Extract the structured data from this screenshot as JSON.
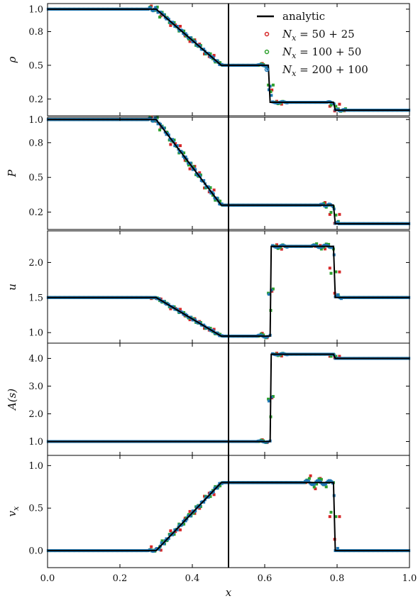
{
  "chart_data": {
    "type": "line",
    "shared_x": {
      "xlabel": "x",
      "xlim": [
        0.0,
        1.0
      ],
      "xticks": [
        0.0,
        0.2,
        0.4,
        0.6,
        0.8,
        1.0
      ],
      "xtick_labels": [
        "0.0",
        "0.2",
        "0.4",
        "0.6",
        "0.8",
        "1.0"
      ]
    },
    "vertical_line_x": 0.5,
    "legend": {
      "placement": "top-right",
      "entries": [
        {
          "label": "analytic",
          "style": "line",
          "color": "#000000"
        },
        {
          "label": "N_x = 50 + 25",
          "sub": "x",
          "rhs": " = 50 + 25",
          "style": "marker",
          "color": "#d62728"
        },
        {
          "label": "N_x = 100 + 50",
          "sub": "x",
          "rhs": " = 100 + 50",
          "style": "marker",
          "color": "#2ca02c"
        },
        {
          "label": "N_x = 200 + 100",
          "sub": "x",
          "rhs": " = 200 + 100",
          "style": "marker",
          "color": "#1f77b4"
        }
      ]
    },
    "panels": [
      {
        "ylabel": "ρ",
        "ylim": [
          0.05,
          1.05
        ],
        "yticks": [
          0.2,
          0.5,
          0.8,
          1.0
        ],
        "ytick_labels": [
          "0.2",
          "0.5",
          "0.8",
          "1.0"
        ],
        "analytic": [
          [
            0.0,
            1.0
          ],
          [
            0.3,
            1.0
          ],
          [
            0.48,
            0.5
          ],
          [
            0.61,
            0.5
          ],
          [
            0.615,
            0.17
          ],
          [
            0.79,
            0.17
          ],
          [
            0.795,
            0.1
          ],
          [
            1.0,
            0.1
          ]
        ],
        "bumps": [
          [
            0.3,
            0.015,
            0.05
          ],
          [
            0.62,
            0.03,
            0.02
          ],
          [
            0.8,
            0.02,
            0.02
          ]
        ]
      },
      {
        "ylabel": "P",
        "ylim": [
          0.05,
          1.02
        ],
        "yticks": [
          0.2,
          0.5,
          0.8,
          1.0
        ],
        "ytick_labels": [
          "0.2",
          "0.5",
          "0.8",
          "1.0"
        ],
        "analytic": [
          [
            0.0,
            1.0
          ],
          [
            0.3,
            1.0
          ],
          [
            0.48,
            0.26
          ],
          [
            0.79,
            0.26
          ],
          [
            0.795,
            0.1
          ],
          [
            1.0,
            0.1
          ]
        ],
        "bumps": [
          [
            0.3,
            0.015,
            0.05
          ],
          [
            0.78,
            0.02,
            0.03
          ]
        ]
      },
      {
        "ylabel": "u",
        "ylim": [
          0.85,
          2.45
        ],
        "yticks": [
          1.0,
          1.5,
          2.0
        ],
        "ytick_labels": [
          "1.0",
          "1.5",
          "2.0"
        ],
        "analytic": [
          [
            0.0,
            1.5
          ],
          [
            0.3,
            1.5
          ],
          [
            0.48,
            0.95
          ],
          [
            0.615,
            0.95
          ],
          [
            0.618,
            2.23
          ],
          [
            0.79,
            2.23
          ],
          [
            0.795,
            1.5
          ],
          [
            1.0,
            1.5
          ]
        ],
        "bumps": [
          [
            0.62,
            0.03,
            0.05
          ],
          [
            0.77,
            0.03,
            0.06
          ]
        ]
      },
      {
        "ylabel": "A(s)",
        "ylim": [
          0.5,
          4.55
        ],
        "yticks": [
          1.0,
          2.0,
          3.0,
          4.0
        ],
        "ytick_labels": [
          "1.0",
          "2.0",
          "3.0",
          "4.0"
        ],
        "analytic": [
          [
            0.0,
            1.0
          ],
          [
            0.615,
            1.0
          ],
          [
            0.618,
            4.15
          ],
          [
            0.79,
            4.15
          ],
          [
            0.795,
            4.0
          ],
          [
            1.0,
            4.0
          ]
        ],
        "bumps": [
          [
            0.62,
            0.03,
            0.08
          ]
        ]
      },
      {
        "ylabel": "v_x",
        "ylim": [
          -0.2,
          1.12
        ],
        "yticks": [
          0.0,
          0.5,
          1.0
        ],
        "ytick_labels": [
          "0.0",
          "0.5",
          "1.0"
        ],
        "analytic": [
          [
            0.0,
            0.0
          ],
          [
            0.3,
            0.0
          ],
          [
            0.48,
            0.8
          ],
          [
            0.79,
            0.8
          ],
          [
            0.795,
            0.0
          ],
          [
            1.0,
            0.0
          ]
        ],
        "bumps": [
          [
            0.3,
            0.015,
            0.03
          ],
          [
            0.75,
            0.03,
            0.08
          ]
        ]
      }
    ]
  }
}
